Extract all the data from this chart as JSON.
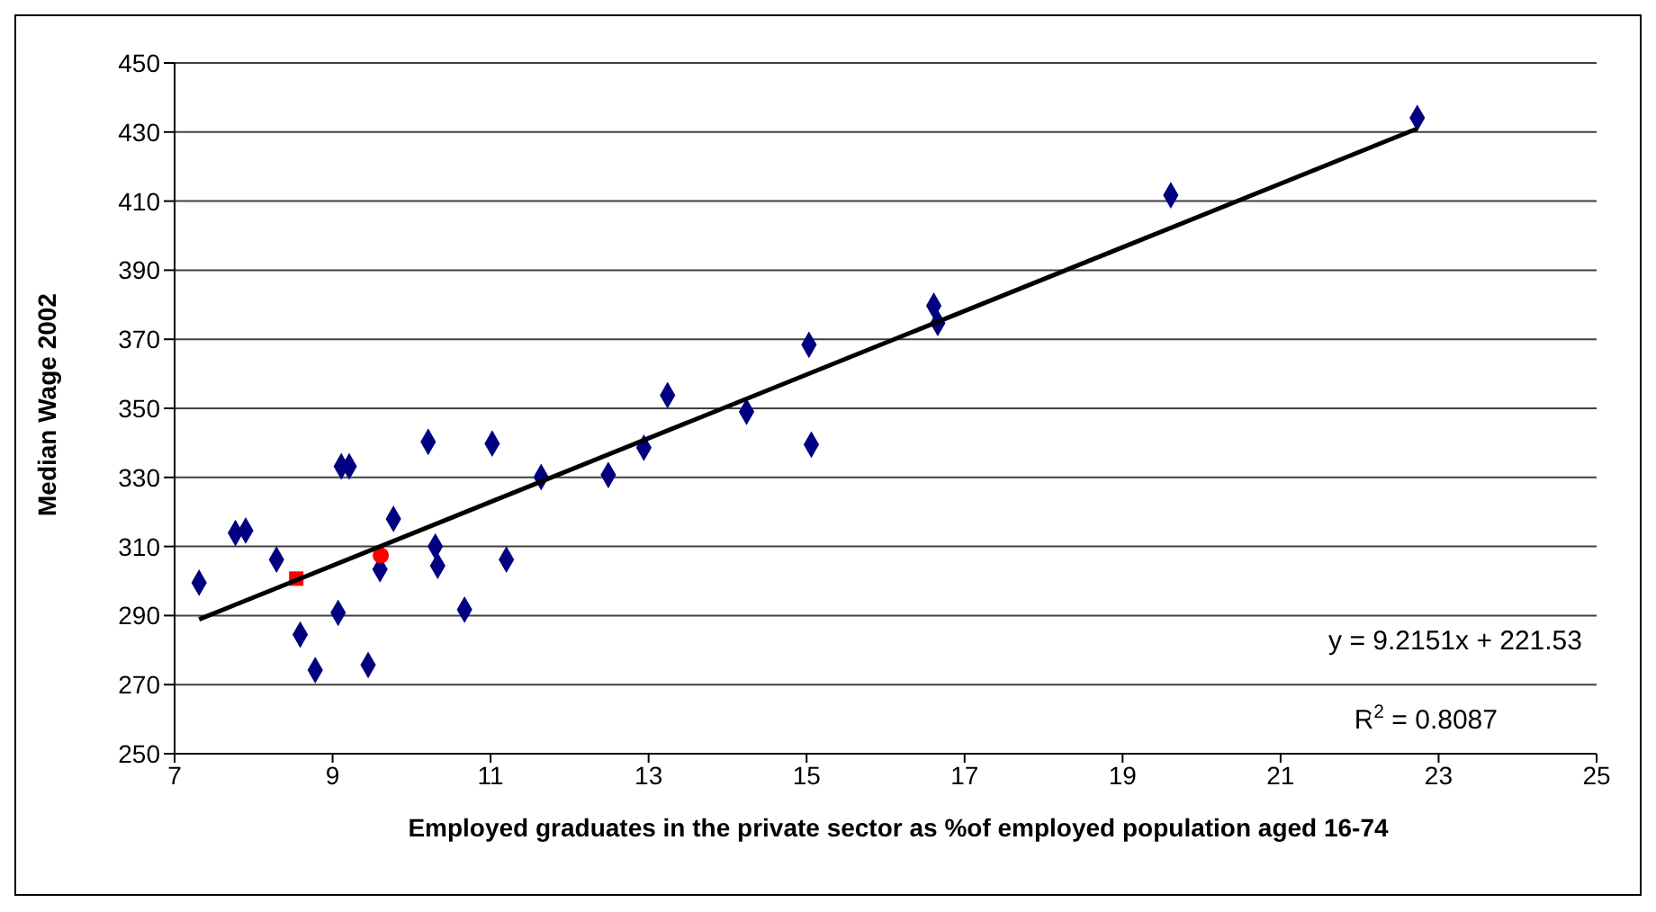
{
  "chart_data": {
    "type": "scatter",
    "xlabel": "Employed graduates in the private sector as %of employed population aged 16-74",
    "ylabel": "Median Wage 2002",
    "xlim": [
      7,
      25
    ],
    "xticks": [
      7,
      9,
      11,
      13,
      15,
      17,
      19,
      21,
      23,
      25
    ],
    "ylim": [
      250,
      450
    ],
    "yticks": [
      250,
      270,
      290,
      310,
      330,
      350,
      370,
      390,
      410,
      430,
      450
    ],
    "grid": "y",
    "series": [
      {
        "color": "#000080",
        "marker": "diamond",
        "x": [
          7.31,
          7.77,
          7.9,
          8.29,
          8.59,
          8.78,
          9.07,
          9.11,
          9.21,
          9.45,
          9.6,
          9.77,
          10.21,
          10.3,
          10.33,
          10.67,
          11.02,
          11.2,
          11.64,
          12.49,
          12.94,
          13.24,
          14.24,
          15.03,
          15.06,
          16.61,
          16.66,
          19.61,
          22.73
        ],
        "values": [
          299.5,
          313.9,
          314.6,
          306.2,
          284.5,
          274.2,
          290.8,
          333.2,
          333.2,
          275.7,
          303.4,
          318,
          340.3,
          310,
          304.4,
          291.7,
          339.8,
          306.2,
          330.1,
          330.7,
          338.6,
          353.8,
          349,
          368.4,
          339.5,
          379.7,
          374.7,
          411.7,
          434.1
        ]
      },
      {
        "color": "#ff0000",
        "marker": "square",
        "x": [
          8.54
        ],
        "values": [
          300.7
        ]
      },
      {
        "color": "#ff0000",
        "marker": "circle",
        "x": [
          9.61
        ],
        "values": [
          307.4
        ]
      },
      {
        "type": "line",
        "color": "#000000",
        "marker": "none",
        "x": [
          7.31,
          22.73
        ],
        "values": [
          288.9,
          431.0
        ]
      }
    ],
    "annotations": [
      "y = 9.2151x + 221.53",
      "R$^{2}$ = 0.8087"
    ]
  }
}
